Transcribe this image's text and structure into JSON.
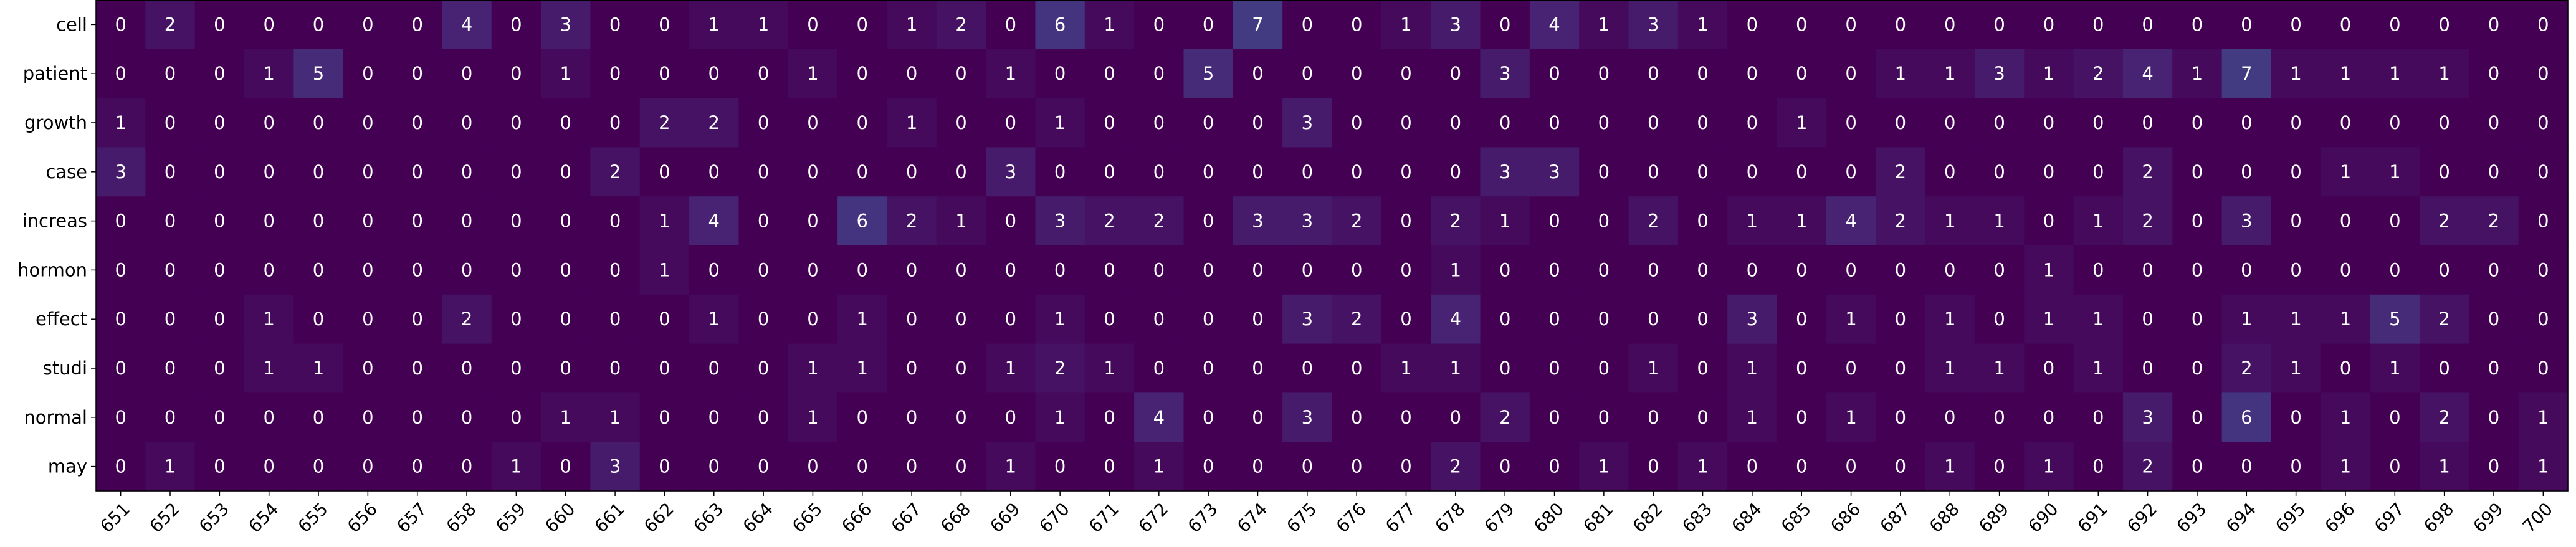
{
  "chart_data": {
    "type": "heatmap",
    "colormap": "viridis",
    "vmin": 0,
    "vmax": 40,
    "x_categories": [
      "651",
      "652",
      "653",
      "654",
      "655",
      "656",
      "657",
      "658",
      "659",
      "660",
      "661",
      "662",
      "663",
      "664",
      "665",
      "666",
      "667",
      "668",
      "669",
      "670",
      "671",
      "672",
      "673",
      "674",
      "675",
      "676",
      "677",
      "678",
      "679",
      "680",
      "681",
      "682",
      "683",
      "684",
      "685",
      "686",
      "687",
      "688",
      "689",
      "690",
      "691",
      "692",
      "693",
      "694",
      "695",
      "696",
      "697",
      "698",
      "699",
      "700"
    ],
    "y_categories": [
      "cell",
      "patient",
      "growth",
      "case",
      "increas",
      "hormon",
      "effect",
      "studi",
      "normal",
      "may"
    ],
    "values": [
      [
        0,
        2,
        0,
        0,
        0,
        0,
        0,
        4,
        0,
        3,
        0,
        0,
        1,
        1,
        0,
        0,
        1,
        2,
        0,
        6,
        1,
        0,
        0,
        7,
        0,
        0,
        1,
        3,
        0,
        4,
        1,
        3,
        1,
        0,
        0,
        0,
        0,
        0,
        0,
        0,
        0,
        0,
        0,
        0,
        0,
        0,
        0,
        0,
        0,
        0
      ],
      [
        0,
        0,
        0,
        1,
        5,
        0,
        0,
        0,
        0,
        1,
        0,
        0,
        0,
        0,
        1,
        0,
        0,
        0,
        1,
        0,
        0,
        0,
        5,
        0,
        0,
        0,
        0,
        0,
        3,
        0,
        0,
        0,
        0,
        0,
        0,
        0,
        1,
        1,
        3,
        1,
        2,
        4,
        1,
        7,
        1,
        1,
        1,
        1,
        0,
        0
      ],
      [
        1,
        0,
        0,
        0,
        0,
        0,
        0,
        0,
        0,
        0,
        0,
        2,
        2,
        0,
        0,
        0,
        1,
        0,
        0,
        1,
        0,
        0,
        0,
        0,
        3,
        0,
        0,
        0,
        0,
        0,
        0,
        0,
        0,
        0,
        1,
        0,
        0,
        0,
        0,
        0,
        0,
        0,
        0,
        0,
        0,
        0,
        0,
        0,
        0,
        0
      ],
      [
        3,
        0,
        0,
        0,
        0,
        0,
        0,
        0,
        0,
        0,
        2,
        0,
        0,
        0,
        0,
        0,
        0,
        0,
        3,
        0,
        0,
        0,
        0,
        0,
        0,
        0,
        0,
        0,
        3,
        3,
        0,
        0,
        0,
        0,
        0,
        0,
        2,
        0,
        0,
        0,
        0,
        2,
        0,
        0,
        0,
        1,
        1,
        0,
        0,
        0
      ],
      [
        0,
        0,
        0,
        0,
        0,
        0,
        0,
        0,
        0,
        0,
        0,
        1,
        4,
        0,
        0,
        6,
        2,
        1,
        0,
        3,
        2,
        2,
        0,
        3,
        3,
        2,
        0,
        2,
        1,
        0,
        0,
        2,
        0,
        1,
        1,
        4,
        2,
        1,
        1,
        0,
        1,
        2,
        0,
        3,
        0,
        0,
        0,
        2,
        2,
        0
      ],
      [
        0,
        0,
        0,
        0,
        0,
        0,
        0,
        0,
        0,
        0,
        0,
        1,
        0,
        0,
        0,
        0,
        0,
        0,
        0,
        0,
        0,
        0,
        0,
        0,
        0,
        0,
        0,
        1,
        0,
        0,
        0,
        0,
        0,
        0,
        0,
        0,
        0,
        0,
        0,
        1,
        0,
        0,
        0,
        0,
        0,
        0,
        0,
        0,
        0,
        0
      ],
      [
        0,
        0,
        0,
        1,
        0,
        0,
        0,
        2,
        0,
        0,
        0,
        0,
        1,
        0,
        0,
        1,
        0,
        0,
        0,
        1,
        0,
        0,
        0,
        0,
        3,
        2,
        0,
        4,
        0,
        0,
        0,
        0,
        0,
        3,
        0,
        1,
        0,
        1,
        0,
        1,
        1,
        0,
        0,
        1,
        1,
        1,
        5,
        2,
        0,
        0
      ],
      [
        0,
        0,
        0,
        1,
        1,
        0,
        0,
        0,
        0,
        0,
        0,
        0,
        0,
        0,
        1,
        1,
        0,
        0,
        1,
        2,
        1,
        0,
        0,
        0,
        0,
        0,
        1,
        1,
        0,
        0,
        0,
        1,
        0,
        1,
        0,
        0,
        0,
        1,
        1,
        0,
        1,
        0,
        0,
        2,
        1,
        0,
        1,
        0,
        0,
        0
      ],
      [
        0,
        0,
        0,
        0,
        0,
        0,
        0,
        0,
        0,
        1,
        1,
        0,
        0,
        0,
        1,
        0,
        0,
        0,
        0,
        1,
        0,
        4,
        0,
        0,
        3,
        0,
        0,
        0,
        2,
        0,
        0,
        0,
        0,
        1,
        0,
        1,
        0,
        0,
        0,
        0,
        0,
        3,
        0,
        6,
        0,
        1,
        0,
        2,
        0,
        1
      ],
      [
        0,
        1,
        0,
        0,
        0,
        0,
        0,
        0,
        1,
        0,
        3,
        0,
        0,
        0,
        0,
        0,
        0,
        0,
        1,
        0,
        0,
        1,
        0,
        0,
        0,
        0,
        0,
        2,
        0,
        0,
        1,
        0,
        1,
        0,
        0,
        0,
        0,
        1,
        0,
        1,
        0,
        2,
        0,
        0,
        0,
        1,
        0,
        1,
        0,
        1
      ]
    ]
  },
  "colors": {
    "low_text": "#ffffff",
    "high_text": "#000000"
  }
}
